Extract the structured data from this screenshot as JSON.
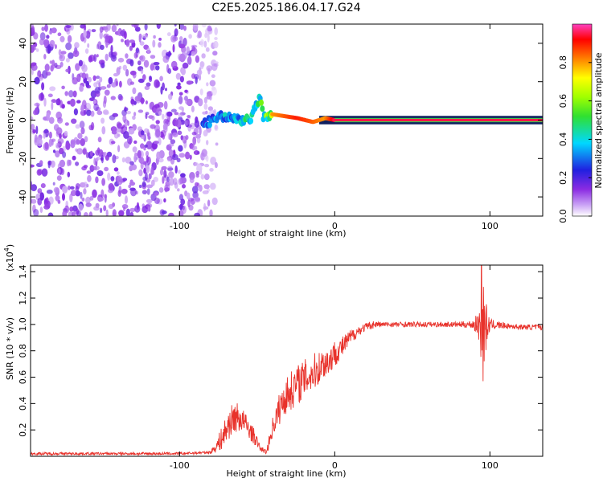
{
  "title": "C2E5.2025.186.04.17.G24",
  "colors": {
    "line": "#e8322b",
    "frame": "#000000",
    "spec_low": "#8a2be2"
  },
  "chart_data": [
    {
      "type": "heatmap",
      "title": "C2E5.2025.186.04.17.G24",
      "xlabel": "Height of straight line (km)",
      "ylabel": "Frequency (Hz)",
      "xlim": [
        -196,
        134
      ],
      "ylim": [
        -50,
        50
      ],
      "x_ticks": [
        -100,
        0,
        100
      ],
      "x_tick_labels": [
        "-100",
        "0",
        "100"
      ],
      "y_ticks": [
        -40,
        -20,
        0,
        20,
        40
      ],
      "y_tick_labels": [
        "-40",
        "-20",
        "0",
        "20",
        "40"
      ],
      "colorbar": {
        "label": "Normalized spectral amplitude",
        "range": [
          0,
          1
        ],
        "ticks": [
          0.0,
          0.2,
          0.4,
          0.6,
          0.8
        ],
        "tick_labels": [
          "0.0",
          "0.2",
          "0.4",
          "0.6",
          "0.8"
        ],
        "colormap": "rainbow (white-violet-blue-cyan-green-yellow-red-magenta)"
      },
      "noise_region": {
        "x_range": [
          -196,
          -80
        ],
        "y_range": [
          -50,
          50
        ],
        "amplitude": 0.12
      },
      "ridge": [
        {
          "x": -85,
          "y": -2,
          "a": 0.3
        },
        {
          "x": -78,
          "y": 0,
          "a": 0.35
        },
        {
          "x": -72,
          "y": 2,
          "a": 0.4
        },
        {
          "x": -66,
          "y": 1,
          "a": 0.4
        },
        {
          "x": -60,
          "y": 0,
          "a": 0.45
        },
        {
          "x": -54,
          "y": 1,
          "a": 0.5
        },
        {
          "x": -48,
          "y": 12,
          "a": 0.55
        },
        {
          "x": -46,
          "y": 1,
          "a": 0.5
        },
        {
          "x": -40,
          "y": 3,
          "a": 0.8
        },
        {
          "x": -32,
          "y": 2,
          "a": 0.85
        },
        {
          "x": -24,
          "y": 1,
          "a": 0.9
        },
        {
          "x": -14,
          "y": -1,
          "a": 0.85
        },
        {
          "x": -6,
          "y": 1,
          "a": 0.8
        },
        {
          "x": 0,
          "y": 0,
          "a": 0.95
        },
        {
          "x": 134,
          "y": 0,
          "a": 0.95
        }
      ]
    },
    {
      "type": "line",
      "xlabel": "Height of straight line (km)",
      "ylabel": "SNR (10 * v/v)",
      "y_multiplier_label": "(x10",
      "y_multiplier_exp": "4",
      "xlim": [
        -196,
        134
      ],
      "ylim": [
        0,
        1.45
      ],
      "x_ticks": [
        -100,
        0,
        100
      ],
      "x_tick_labels": [
        "-100",
        "0",
        "100"
      ],
      "y_ticks": [
        0.2,
        0.4,
        0.6,
        0.8,
        1.0,
        1.2,
        1.4
      ],
      "y_tick_labels": [
        "0.2",
        "0.4",
        "0.6",
        "0.8",
        "1.0",
        "1.2",
        "1.4"
      ],
      "series": [
        {
          "color": "#e8322b",
          "x": [
            -196,
            -100,
            -80,
            -76,
            -72,
            -68,
            -64,
            -60,
            -56,
            -52,
            -48,
            -44,
            -40,
            -36,
            -32,
            -28,
            -24,
            -20,
            -16,
            -12,
            -8,
            -4,
            0,
            5,
            10,
            15,
            20,
            25,
            30,
            40,
            50,
            60,
            70,
            80,
            88,
            92,
            94,
            96,
            98,
            100,
            110,
            120,
            134
          ],
          "y": [
            0.02,
            0.02,
            0.03,
            0.08,
            0.15,
            0.25,
            0.3,
            0.28,
            0.22,
            0.15,
            0.06,
            0.03,
            0.22,
            0.35,
            0.45,
            0.5,
            0.55,
            0.58,
            0.62,
            0.65,
            0.7,
            0.72,
            0.78,
            0.83,
            0.9,
            0.95,
            0.98,
            1.0,
            1.0,
            1.0,
            1.0,
            1.0,
            1.0,
            1.0,
            1.0,
            1.0,
            1.0,
            1.0,
            0.98,
            1.0,
            0.99,
            0.98,
            0.98
          ],
          "fluct": [
            0.01,
            0.01,
            0.01,
            0.05,
            0.1,
            0.12,
            0.12,
            0.1,
            0.08,
            0.06,
            0.02,
            0.02,
            0.08,
            0.12,
            0.14,
            0.15,
            0.15,
            0.15,
            0.15,
            0.14,
            0.12,
            0.12,
            0.1,
            0.08,
            0.06,
            0.04,
            0.03,
            0.03,
            0.02,
            0.02,
            0.02,
            0.02,
            0.02,
            0.02,
            0.03,
            0.08,
            0.25,
            0.35,
            0.15,
            0.04,
            0.02,
            0.02,
            0.02
          ],
          "spikes": [
            {
              "x": 94.5,
              "y": 1.45
            },
            {
              "x": 95.5,
              "y": 0.57
            }
          ]
        }
      ]
    }
  ]
}
